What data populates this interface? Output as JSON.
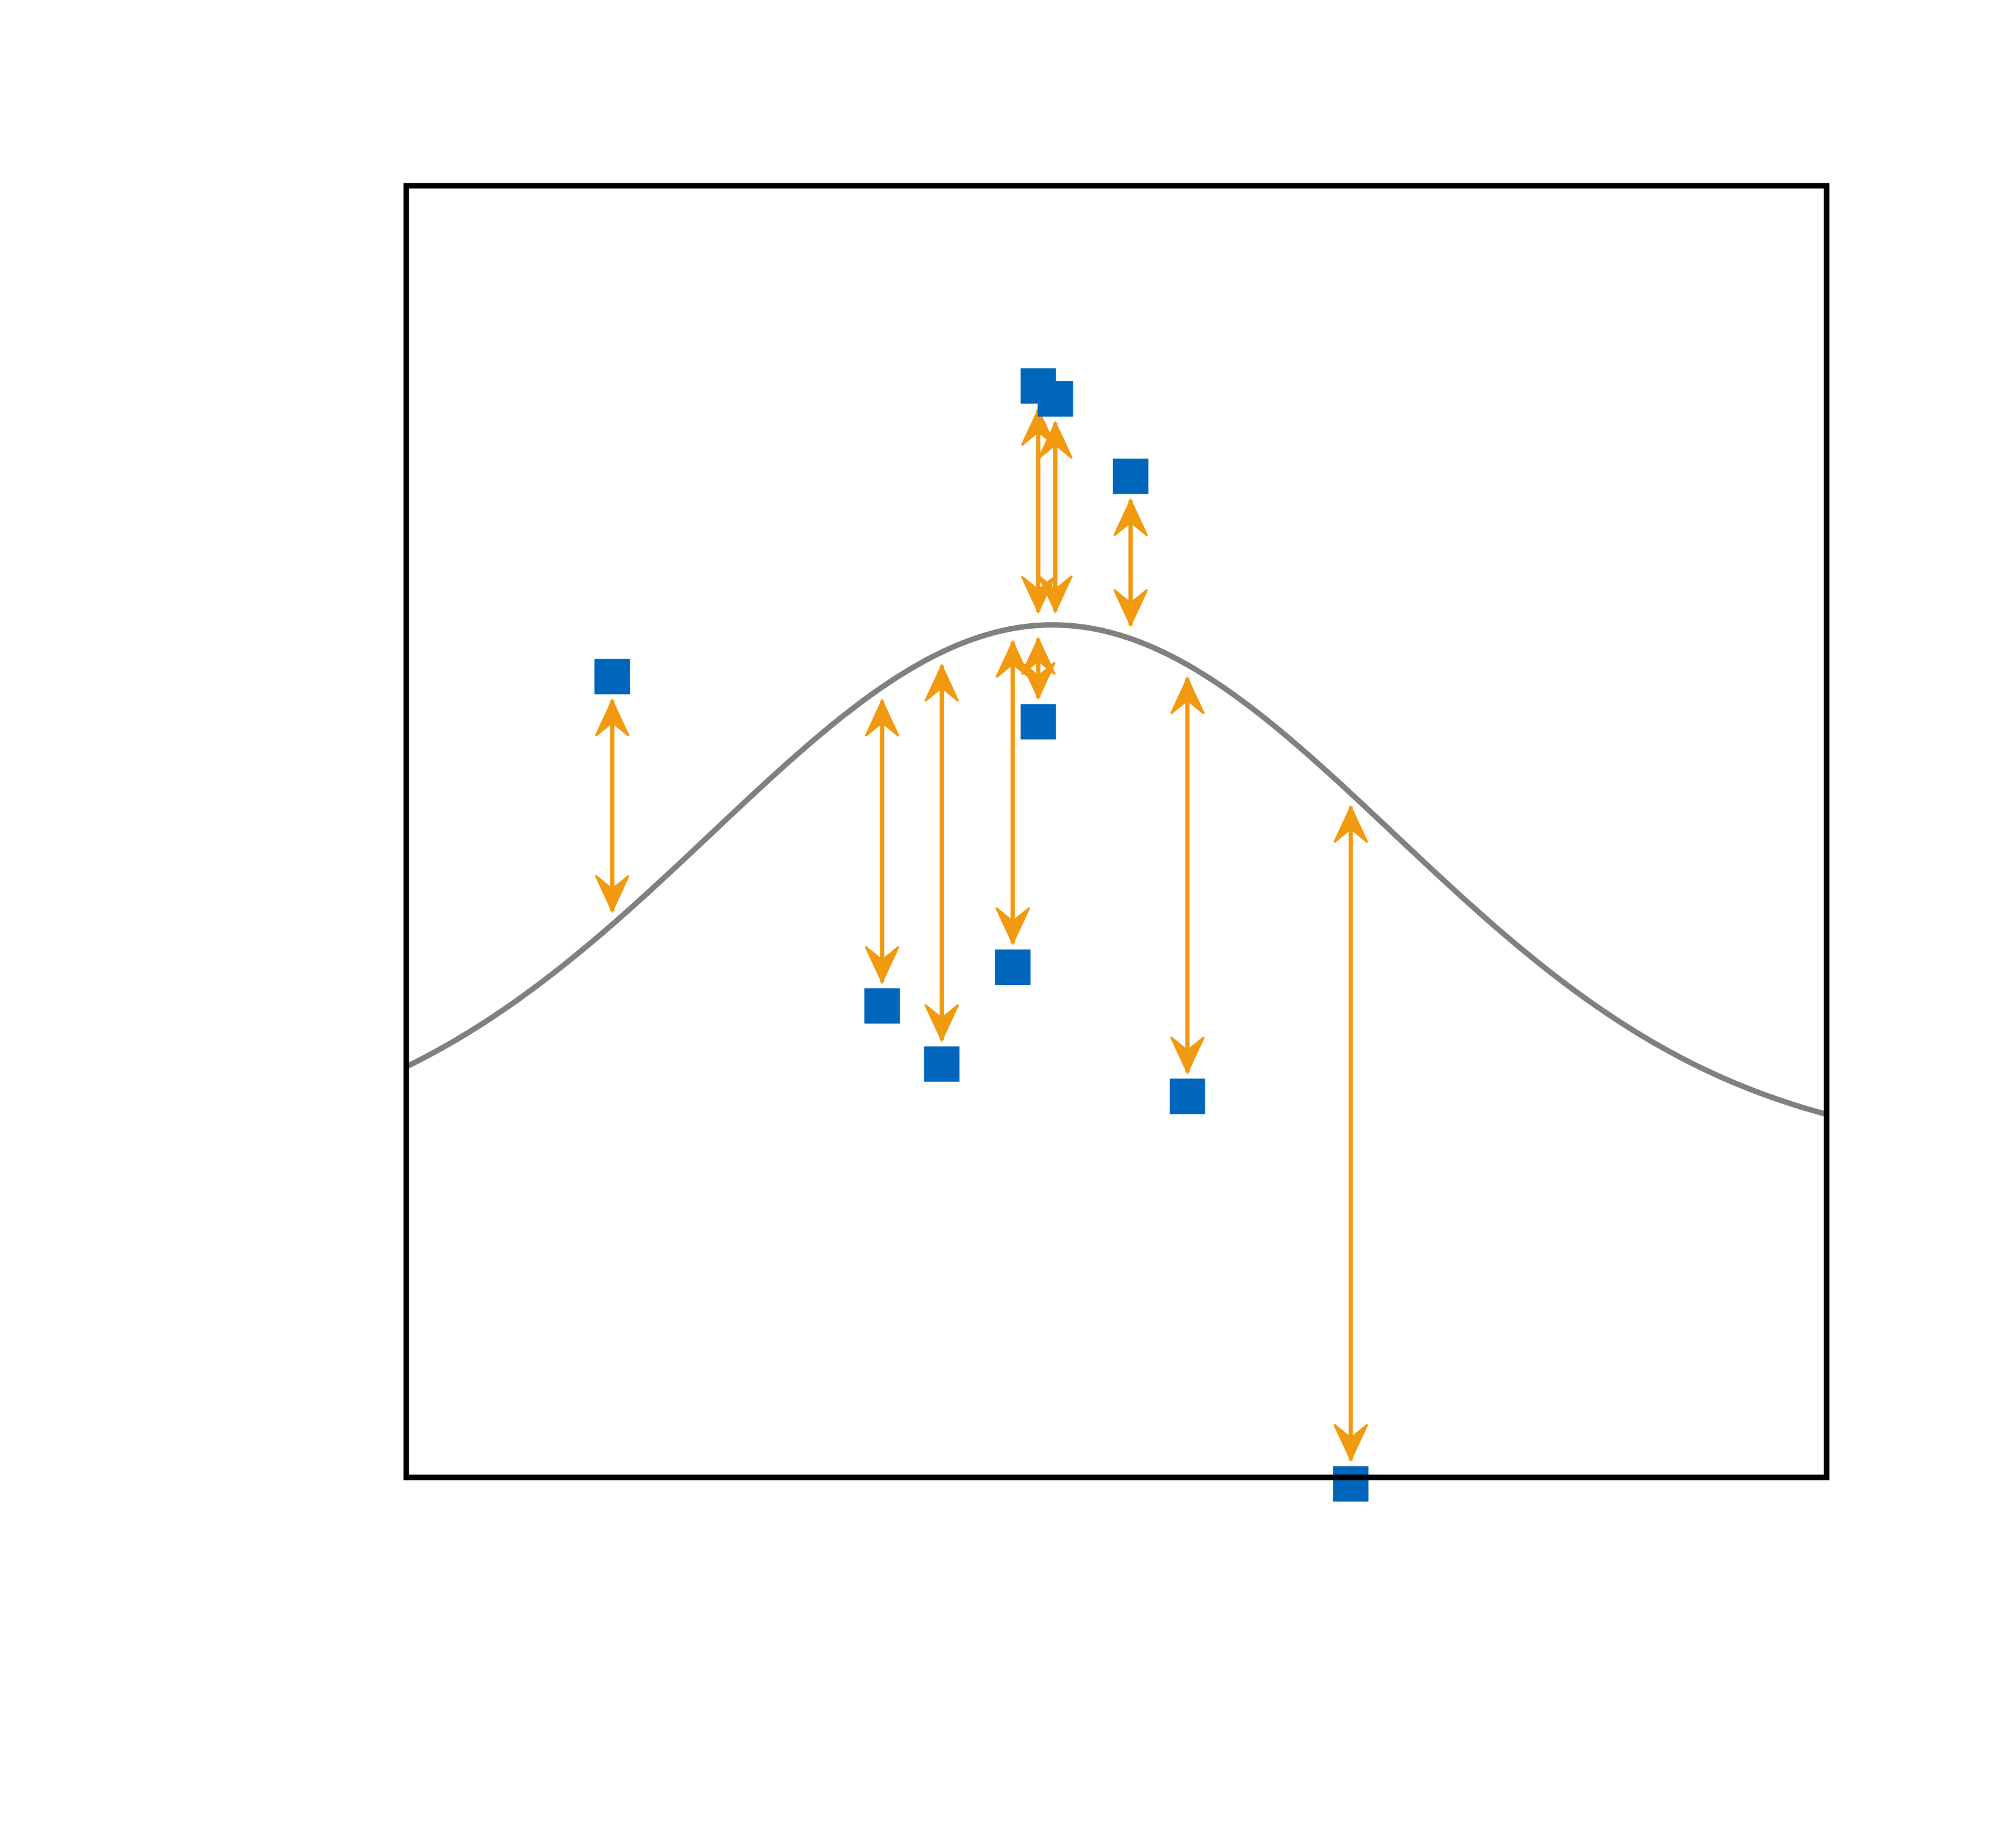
{
  "chart_data": {
    "type": "scatter",
    "title": "",
    "xlabel": "",
    "ylabel": "",
    "xlim": [
      0,
      10
    ],
    "ylim": [
      -0.5,
      1.5
    ],
    "grid": false,
    "legend": "none",
    "curve": {
      "kind": "gaussian",
      "amplitude": 0.82,
      "mean": 4.55,
      "sigma": 2.4,
      "color": "#808080"
    },
    "points": {
      "marker": "square",
      "color": "#0066bb",
      "x": [
        1.45,
        3.35,
        3.77,
        4.27,
        4.45,
        4.57,
        5.1,
        5.5,
        6.65,
        4.45
      ],
      "y": [
        0.74,
        0.23,
        0.14,
        0.29,
        1.19,
        1.17,
        1.05,
        0.09,
        -0.51,
        0.67
      ]
    },
    "residual_arrows": {
      "color": "#f29a0f",
      "style": "double-headed"
    }
  }
}
